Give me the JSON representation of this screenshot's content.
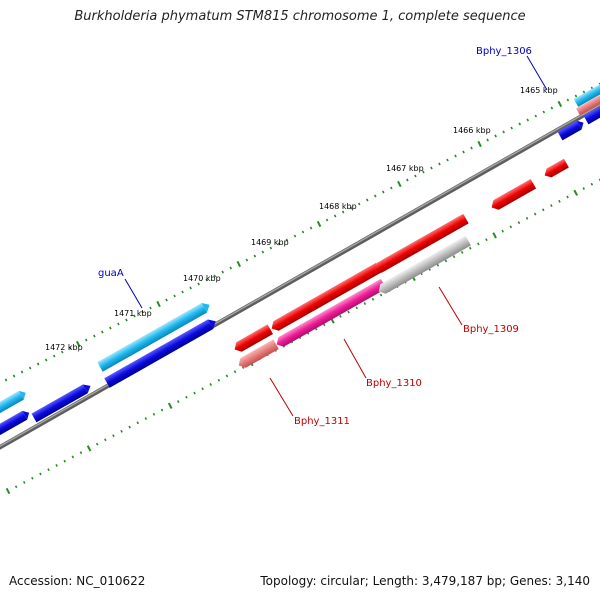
{
  "title": "Burkholderia phymatum STM815 chromosome 1, complete sequence",
  "accession": "Accession: NC_010622",
  "topology": "Topology: circular; Length: 3,479,187 bp; Genes: 3,140",
  "tick_labels": [
    "1465 kbp",
    "1466 kbp",
    "1467 kbp",
    "1468 kbp",
    "1469 kbp",
    "1470 kbp",
    "1471 kbp",
    "1472 kbp"
  ],
  "gene_labels": {
    "bphy_1306": "Bphy_1306",
    "guaA": "guaA",
    "bphy_1309": "Bphy_1309",
    "bphy_1310": "Bphy_1310",
    "bphy_1311": "Bphy_1311"
  },
  "colors": {
    "backbone": "#808080",
    "tick": "#2a8a2a",
    "forward_cds_light": "#1fb8ee",
    "forward_cds_dark": "#0a0ae0",
    "reverse_cds_red": "#ee0000",
    "reverse_cds_pink": "#ee1e96",
    "reverse_cds_salmon": "#e77a7a",
    "pseudo_grey": "#bdbdbd",
    "label_blue": "#0000c0",
    "label_red": "#c00000"
  }
}
